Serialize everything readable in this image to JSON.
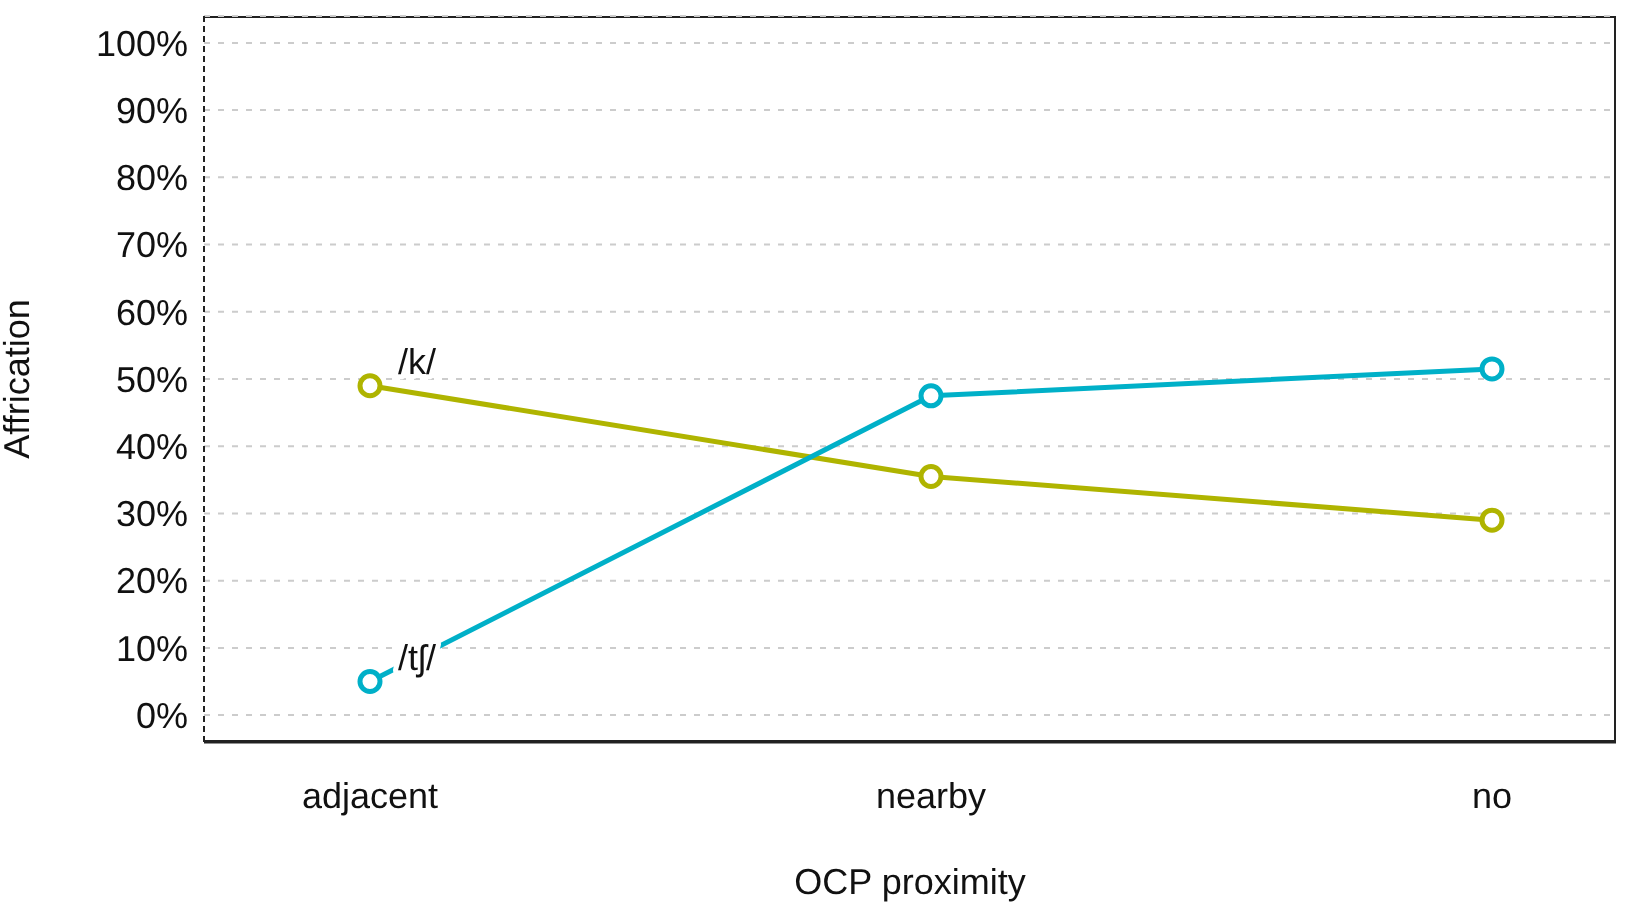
{
  "chart_data": {
    "type": "line",
    "xlabel": "OCP proximity",
    "ylabel": "Affrication",
    "categories": [
      "adjacent",
      "nearby",
      "no"
    ],
    "series": [
      {
        "name": "/k/",
        "color": "#afb400",
        "values": [
          49,
          35.5,
          29
        ]
      },
      {
        "name": "/tʃ/",
        "color": "#00b0c8",
        "values": [
          5,
          47.5,
          51.5
        ]
      }
    ],
    "ylim": [
      -4,
      104
    ],
    "yticks": [
      {
        "value": 0,
        "label": "0%"
      },
      {
        "value": 10,
        "label": "10%"
      },
      {
        "value": 20,
        "label": "20%"
      },
      {
        "value": 30,
        "label": "30%"
      },
      {
        "value": 40,
        "label": "40%"
      },
      {
        "value": 50,
        "label": "50%"
      },
      {
        "value": 60,
        "label": "60%"
      },
      {
        "value": 70,
        "label": "70%"
      },
      {
        "value": 80,
        "label": "80%"
      },
      {
        "value": 90,
        "label": "90%"
      },
      {
        "value": 100,
        "label": "100%"
      }
    ],
    "grid": "y",
    "legend": false,
    "marker": "circle",
    "line_style": "solid"
  }
}
